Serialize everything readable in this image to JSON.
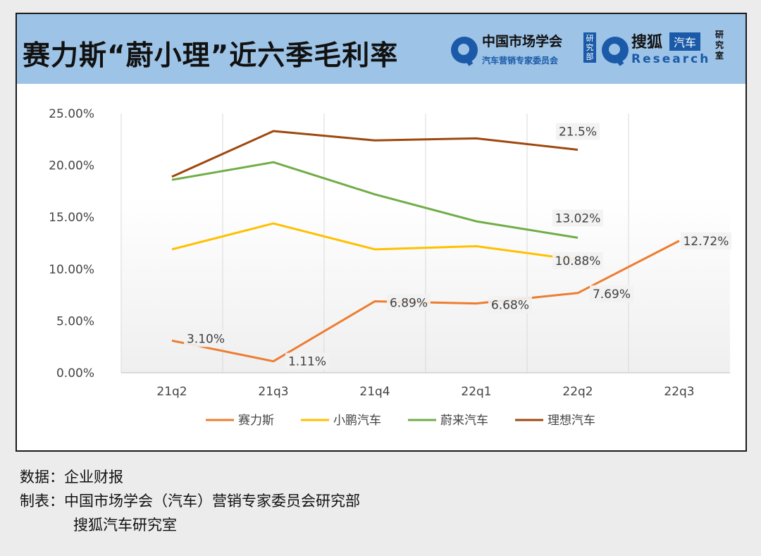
{
  "header": {
    "title": "赛力斯“蔚小理”近六季毛利率",
    "org_name": "中国市场学会",
    "org_sub": "汽车营销专家委员会",
    "org_dept": "研究部",
    "sohu": "搜狐",
    "qiche": "汽车",
    "research": "Research",
    "lab": "研究室",
    "brand_color": "#1a5aa8",
    "header_bg": "#9dc3e6"
  },
  "chart_data": {
    "type": "line",
    "categories": [
      "21q2",
      "21q3",
      "21q4",
      "22q1",
      "22q2",
      "22q3"
    ],
    "y_ticks": [
      "0.00%",
      "5.00%",
      "10.00%",
      "15.00%",
      "20.00%",
      "25.00%"
    ],
    "ylim": [
      0,
      25
    ],
    "grid": "vertical",
    "legend_position": "bottom",
    "series": [
      {
        "name": "赛力斯",
        "color": "#ed7d31",
        "values": [
          3.1,
          1.11,
          6.89,
          6.68,
          7.69,
          12.72
        ],
        "labels": [
          "3.10%",
          "1.11%",
          "6.89%",
          "6.68%",
          "7.69%",
          "12.72%"
        ]
      },
      {
        "name": "小鹏汽车",
        "color": "#ffc000",
        "values": [
          11.9,
          14.4,
          11.9,
          12.2,
          10.88,
          null
        ],
        "labels": [
          "",
          "",
          "",
          "",
          "10.88%",
          ""
        ]
      },
      {
        "name": "蔚来汽车",
        "color": "#70ad47",
        "values": [
          18.6,
          20.3,
          17.2,
          14.6,
          13.02,
          null
        ],
        "labels": [
          "",
          "",
          "",
          "",
          "13.02%",
          ""
        ]
      },
      {
        "name": "理想汽车",
        "color": "#9e480e",
        "values": [
          18.9,
          23.3,
          22.4,
          22.6,
          21.5,
          null
        ],
        "labels": [
          "",
          "",
          "",
          "",
          "21.5%",
          ""
        ]
      }
    ]
  },
  "footer": {
    "source_label": "数据：",
    "source": "企业财报",
    "maker_label": "制表：",
    "maker": "中国市场学会（汽车）营销专家委员会研究部",
    "maker2": "搜狐汽车研究室"
  }
}
